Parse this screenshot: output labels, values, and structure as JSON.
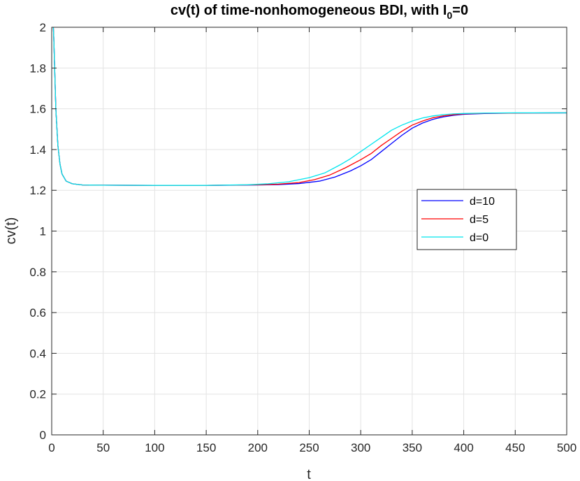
{
  "chart_data": {
    "type": "line",
    "title_main": "cv(t) of time-nonhomogeneous BDI, with I",
    "title_sub": "0",
    "title_tail": "=0",
    "xlabel": "t",
    "ylabel": "cv(t)",
    "xlim": [
      0,
      500
    ],
    "ylim": [
      0,
      2
    ],
    "xticks": [
      0,
      50,
      100,
      150,
      200,
      250,
      300,
      350,
      400,
      450,
      500
    ],
    "yticks": [
      0,
      0.2,
      0.4,
      0.6,
      0.8,
      1,
      1.2,
      1.4,
      1.6,
      1.8,
      2
    ],
    "grid": true,
    "legend_position": "right-center",
    "series": [
      {
        "name": "d=10",
        "color": "#0000ff",
        "points": [
          [
            0,
            2.2
          ],
          [
            2,
            1.95
          ],
          [
            4,
            1.6
          ],
          [
            6,
            1.42
          ],
          [
            8,
            1.33
          ],
          [
            10,
            1.28
          ],
          [
            14,
            1.245
          ],
          [
            20,
            1.232
          ],
          [
            30,
            1.226
          ],
          [
            50,
            1.225
          ],
          [
            100,
            1.224
          ],
          [
            150,
            1.224
          ],
          [
            200,
            1.226
          ],
          [
            220,
            1.228
          ],
          [
            240,
            1.233
          ],
          [
            260,
            1.245
          ],
          [
            275,
            1.265
          ],
          [
            290,
            1.295
          ],
          [
            300,
            1.32
          ],
          [
            310,
            1.35
          ],
          [
            320,
            1.39
          ],
          [
            330,
            1.43
          ],
          [
            340,
            1.47
          ],
          [
            350,
            1.505
          ],
          [
            360,
            1.53
          ],
          [
            370,
            1.548
          ],
          [
            380,
            1.56
          ],
          [
            390,
            1.568
          ],
          [
            400,
            1.573
          ],
          [
            420,
            1.577
          ],
          [
            450,
            1.579
          ],
          [
            500,
            1.58
          ]
        ]
      },
      {
        "name": "d=5",
        "color": "#ff0000",
        "points": [
          [
            0,
            2.2
          ],
          [
            2,
            1.95
          ],
          [
            4,
            1.6
          ],
          [
            6,
            1.42
          ],
          [
            8,
            1.33
          ],
          [
            10,
            1.28
          ],
          [
            14,
            1.245
          ],
          [
            20,
            1.232
          ],
          [
            30,
            1.226
          ],
          [
            50,
            1.225
          ],
          [
            100,
            1.224
          ],
          [
            150,
            1.224
          ],
          [
            200,
            1.227
          ],
          [
            220,
            1.23
          ],
          [
            240,
            1.238
          ],
          [
            255,
            1.252
          ],
          [
            270,
            1.275
          ],
          [
            285,
            1.31
          ],
          [
            300,
            1.35
          ],
          [
            310,
            1.38
          ],
          [
            320,
            1.42
          ],
          [
            330,
            1.455
          ],
          [
            340,
            1.49
          ],
          [
            350,
            1.52
          ],
          [
            360,
            1.54
          ],
          [
            370,
            1.556
          ],
          [
            380,
            1.565
          ],
          [
            390,
            1.571
          ],
          [
            400,
            1.575
          ],
          [
            420,
            1.578
          ],
          [
            450,
            1.579
          ],
          [
            500,
            1.58
          ]
        ]
      },
      {
        "name": "d=0",
        "color": "#00e5ee",
        "points": [
          [
            0,
            2.2
          ],
          [
            2,
            1.95
          ],
          [
            4,
            1.6
          ],
          [
            6,
            1.42
          ],
          [
            8,
            1.33
          ],
          [
            10,
            1.28
          ],
          [
            14,
            1.245
          ],
          [
            20,
            1.232
          ],
          [
            30,
            1.226
          ],
          [
            50,
            1.225
          ],
          [
            100,
            1.224
          ],
          [
            150,
            1.224
          ],
          [
            190,
            1.227
          ],
          [
            210,
            1.232
          ],
          [
            230,
            1.242
          ],
          [
            250,
            1.262
          ],
          [
            265,
            1.285
          ],
          [
            280,
            1.325
          ],
          [
            290,
            1.355
          ],
          [
            300,
            1.39
          ],
          [
            310,
            1.425
          ],
          [
            320,
            1.46
          ],
          [
            330,
            1.495
          ],
          [
            340,
            1.52
          ],
          [
            350,
            1.54
          ],
          [
            360,
            1.555
          ],
          [
            370,
            1.565
          ],
          [
            380,
            1.571
          ],
          [
            390,
            1.575
          ],
          [
            400,
            1.577
          ],
          [
            420,
            1.579
          ],
          [
            450,
            1.58
          ],
          [
            500,
            1.58
          ]
        ]
      }
    ]
  }
}
